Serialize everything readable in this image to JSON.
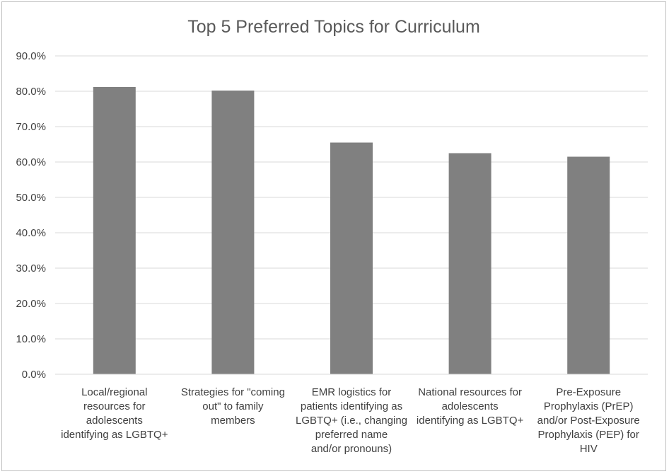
{
  "chart_data": {
    "type": "bar",
    "title": "Top 5 Preferred Topics for Curriculum",
    "xlabel": "",
    "ylabel": "",
    "ylim": [
      0,
      90
    ],
    "y_ticks": [
      "0.0%",
      "10.0%",
      "20.0%",
      "30.0%",
      "40.0%",
      "50.0%",
      "60.0%",
      "70.0%",
      "80.0%",
      "90.0%"
    ],
    "grid": true,
    "legend": "none",
    "bar_color": "#808080",
    "categories": [
      [
        "Local/regional",
        "resources for",
        "adolescents",
        "identifying as LGBTQ+"
      ],
      [
        "Strategies for \"coming",
        "out\" to family",
        "members"
      ],
      [
        "EMR logistics for",
        "patients identifying as",
        "LGBTQ+ (i.e., changing",
        "preferred name",
        "and/or pronouns)"
      ],
      [
        "National resources for",
        "adolescents",
        "identifying as LGBTQ+"
      ],
      [
        "Pre-Exposure",
        "Prophylaxis (PrEP)",
        "and/or Post-Exposure",
        "Prophylaxis (PEP) for",
        "HIV"
      ]
    ],
    "values": [
      81.2,
      80.2,
      65.5,
      62.5,
      61.5
    ]
  }
}
